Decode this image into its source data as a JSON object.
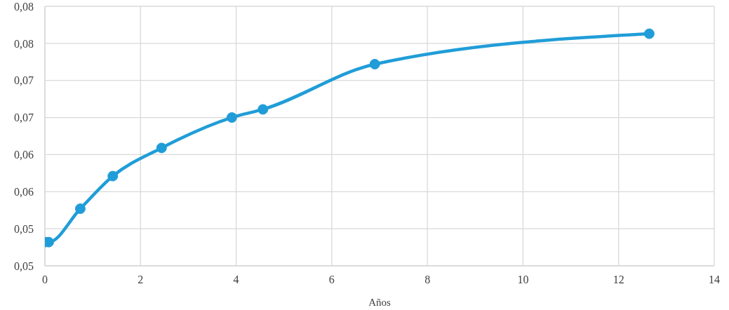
{
  "chart_data": {
    "type": "line",
    "xlabel": "Años",
    "x": [
      0,
      0.08,
      0.74,
      1.42,
      2.44,
      3.91,
      4.56,
      6.9,
      12.64
    ],
    "values": [
      0.0532,
      0.0532,
      0.0577,
      0.0621,
      0.0659,
      0.07,
      0.0711,
      0.0772,
      0.0813
    ],
    "color": "#209dd8",
    "xlim": [
      0,
      14
    ],
    "xticks": [
      0,
      2,
      4,
      6,
      8,
      10,
      12,
      14
    ],
    "ylim": [
      0.05,
      0.085
    ],
    "yticks": [
      {
        "value": 0.05,
        "label": "0,05"
      },
      {
        "value": 0.055,
        "label": "0,05"
      },
      {
        "value": 0.06,
        "label": "0,06"
      },
      {
        "value": 0.065,
        "label": "0,06"
      },
      {
        "value": 0.07,
        "label": "0,07"
      },
      {
        "value": 0.075,
        "label": "0,07"
      },
      {
        "value": 0.08,
        "label": "0,08"
      },
      {
        "value": 0.085,
        "label": "0,08"
      }
    ],
    "grid": true,
    "marker": "circle",
    "line_style": "solid"
  }
}
